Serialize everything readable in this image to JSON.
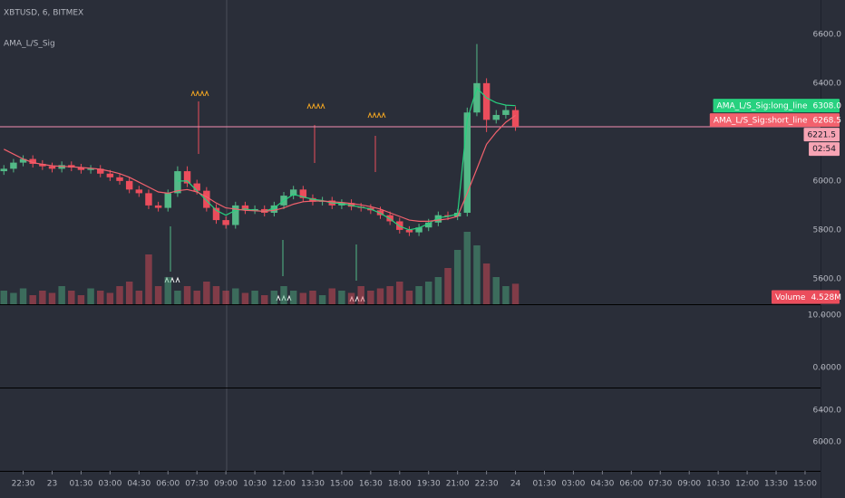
{
  "chart_data": {
    "type": "candlestick",
    "symbol_title": "XBTUSD, 6, BITMEX",
    "indicator_title": "AMA_L/S_Sig",
    "up_color": "#53b987",
    "down_color": "#eb4d5c",
    "x": [
      -1,
      -0.5,
      0,
      0.5,
      1,
      1.5,
      2,
      2.5,
      3,
      3.5,
      4,
      4.5,
      5,
      5.5,
      6,
      6.5,
      7,
      7.5,
      8,
      8.5,
      9,
      9.5,
      10,
      10.5,
      11,
      11.5,
      12,
      12.5,
      13,
      13.5,
      14,
      14.5,
      15,
      15.5,
      16,
      16.5,
      17,
      17.5,
      18,
      18.5,
      19,
      19.5,
      20,
      20.5,
      21,
      21.5,
      22,
      22.5,
      23,
      23.5,
      24,
      24.5,
      25,
      25.5
    ],
    "open": [
      6040,
      6050,
      6075,
      6090,
      6070,
      6060,
      6050,
      6065,
      6055,
      6045,
      6050,
      6030,
      6015,
      6000,
      5965,
      5950,
      5900,
      5890,
      5950,
      6040,
      5990,
      5960,
      5890,
      5840,
      5820,
      5900,
      5880,
      5885,
      5870,
      5900,
      5940,
      5965,
      5930,
      5915,
      5920,
      5900,
      5910,
      5895,
      5890,
      5880,
      5860,
      5835,
      5800,
      5790,
      5810,
      5830,
      5860,
      5855,
      5870,
      6280,
      6400,
      6250,
      6270,
      6290
    ],
    "high": [
      6065,
      6090,
      6105,
      6105,
      6085,
      6075,
      6080,
      6080,
      6070,
      6065,
      6065,
      6045,
      6030,
      6015,
      5980,
      5965,
      5915,
      5965,
      6060,
      6060,
      6005,
      5975,
      5905,
      5855,
      5915,
      5915,
      5900,
      5900,
      5915,
      5955,
      5980,
      5980,
      5945,
      5935,
      5935,
      5925,
      5925,
      5910,
      5905,
      5895,
      5875,
      5850,
      5815,
      5825,
      5845,
      5875,
      5875,
      5885,
      6300,
      6560,
      6420,
      6290,
      6310,
      6305
    ],
    "low": [
      6025,
      6035,
      6060,
      6055,
      6045,
      6035,
      6035,
      6040,
      6030,
      6030,
      6015,
      6000,
      5985,
      5950,
      5935,
      5885,
      5875,
      5875,
      5935,
      5975,
      5945,
      5875,
      5825,
      5805,
      5805,
      5865,
      5865,
      5855,
      5855,
      5885,
      5925,
      5915,
      5900,
      5900,
      5885,
      5885,
      5880,
      5875,
      5865,
      5845,
      5820,
      5785,
      5775,
      5775,
      5795,
      5815,
      5840,
      5840,
      5855,
      6265,
      6200,
      6235,
      6255,
      6205
    ],
    "close": [
      6050,
      6075,
      6090,
      6070,
      6060,
      6050,
      6065,
      6055,
      6045,
      6050,
      6030,
      6015,
      6000,
      5965,
      5950,
      5900,
      5890,
      5950,
      6040,
      5990,
      5960,
      5890,
      5840,
      5820,
      5900,
      5880,
      5885,
      5870,
      5900,
      5940,
      5965,
      5930,
      5915,
      5920,
      5900,
      5910,
      5895,
      5890,
      5880,
      5860,
      5835,
      5800,
      5790,
      5810,
      5830,
      5860,
      5855,
      5870,
      6280,
      6400,
      6250,
      6270,
      6290,
      6221.5
    ],
    "series": [
      {
        "name": "AMA_L/S_Sig:long_line",
        "color": "#27d17f",
        "last_label": "6308.0",
        "values": [
          null,
          null,
          null,
          null,
          null,
          null,
          null,
          null,
          null,
          null,
          null,
          null,
          null,
          null,
          null,
          null,
          null,
          null,
          6000,
          6000,
          5960,
          5920,
          5880,
          5860,
          5880,
          5885,
          5880,
          5875,
          5890,
          5920,
          5945,
          5935,
          5925,
          5920,
          5910,
          5908,
          5900,
          5893,
          5885,
          5868,
          5845,
          5815,
          5800,
          5808,
          5825,
          5850,
          5855,
          5865,
          6250,
          6380,
          6340,
          6320,
          6310,
          6308
        ]
      },
      {
        "name": "AMA_L/S_Sig:short_line",
        "color": "#f2616d",
        "last_label": "6268.5",
        "values": [
          6130,
          6110,
          6090,
          6075,
          6068,
          6062,
          6060,
          6058,
          6055,
          6052,
          6048,
          6040,
          6030,
          6015,
          5995,
          5975,
          5955,
          5950,
          5960,
          5965,
          5955,
          5935,
          5910,
          5890,
          5885,
          5880,
          5878,
          5876,
          5880,
          5890,
          5905,
          5915,
          5918,
          5918,
          5915,
          5912,
          5908,
          5902,
          5895,
          5885,
          5870,
          5855,
          5840,
          5835,
          5835,
          5840,
          5845,
          5855,
          5950,
          6050,
          6150,
          6200,
          6240,
          6268.5
        ]
      }
    ],
    "last_price": 6221.5,
    "countdown": "02:54",
    "volume": {
      "name": "Volume",
      "last_label": "4.528M",
      "ylim": [
        0,
        20
      ],
      "values": [
        3,
        2.5,
        3.5,
        2,
        3,
        2.5,
        4,
        3,
        2,
        3.5,
        3,
        2.5,
        4,
        5,
        3,
        11,
        4,
        6,
        3,
        4,
        3,
        5,
        4,
        3,
        3.5,
        2.5,
        3,
        2,
        3,
        4,
        3,
        2.5,
        3,
        2,
        3.5,
        3,
        2.5,
        4,
        3,
        3.5,
        4,
        5,
        3,
        4,
        5,
        6,
        8,
        12,
        16,
        13,
        9,
        6,
        4,
        4.528
      ]
    },
    "ylim": [
      5496,
      6740
    ],
    "yticks": [
      {
        "value": 6600,
        "label": "6600.0"
      },
      {
        "value": 6400,
        "label": "6400.0"
      },
      {
        "value": 6000,
        "label": "6000.0"
      },
      {
        "value": 5800,
        "label": "5800.0"
      },
      {
        "value": 5600,
        "label": "5600.0"
      }
    ],
    "xlim": [
      -1.2,
      41.3
    ],
    "xticks": [
      {
        "value": 0,
        "label": "22:30"
      },
      {
        "value": 1.5,
        "label": "23"
      },
      {
        "value": 3,
        "label": "01:30"
      },
      {
        "value": 4.5,
        "label": "03:00"
      },
      {
        "value": 6,
        "label": "04:30"
      },
      {
        "value": 7.5,
        "label": "06:00"
      },
      {
        "value": 9,
        "label": "07:30"
      },
      {
        "value": 10.5,
        "label": "09:00"
      },
      {
        "value": 12,
        "label": "10:30"
      },
      {
        "value": 13.5,
        "label": "12:00"
      },
      {
        "value": 15,
        "label": "13:30"
      },
      {
        "value": 16.5,
        "label": "15:00"
      },
      {
        "value": 18,
        "label": "16:30"
      },
      {
        "value": 19.5,
        "label": "18:00"
      },
      {
        "value": 21,
        "label": "19:30"
      },
      {
        "value": 22.5,
        "label": "21:00"
      },
      {
        "value": 24,
        "label": "22:30"
      },
      {
        "value": 25.5,
        "label": "24"
      },
      {
        "value": 27,
        "label": "01:30"
      },
      {
        "value": 28.5,
        "label": "03:00"
      },
      {
        "value": 30,
        "label": "04:30"
      },
      {
        "value": 31.5,
        "label": "06:00"
      },
      {
        "value": 33,
        "label": "07:30"
      },
      {
        "value": 34.5,
        "label": "09:00"
      },
      {
        "value": 36,
        "label": "10:30"
      },
      {
        "value": 37.5,
        "label": "12:00"
      },
      {
        "value": 39,
        "label": "13:30"
      },
      {
        "value": 40.5,
        "label": "15:00"
      }
    ],
    "panes": [
      {
        "ylim": [
          -3.8,
          11.9
        ],
        "yticks": [
          {
            "value": 10,
            "label": "10.0000"
          },
          {
            "value": 0,
            "label": "0.0000"
          }
        ]
      },
      {
        "ylim": [
          5634,
          6674
        ],
        "yticks": [
          {
            "value": 6400,
            "label": "6400.0"
          },
          {
            "value": 6000,
            "label": "6000.0"
          }
        ]
      }
    ]
  }
}
